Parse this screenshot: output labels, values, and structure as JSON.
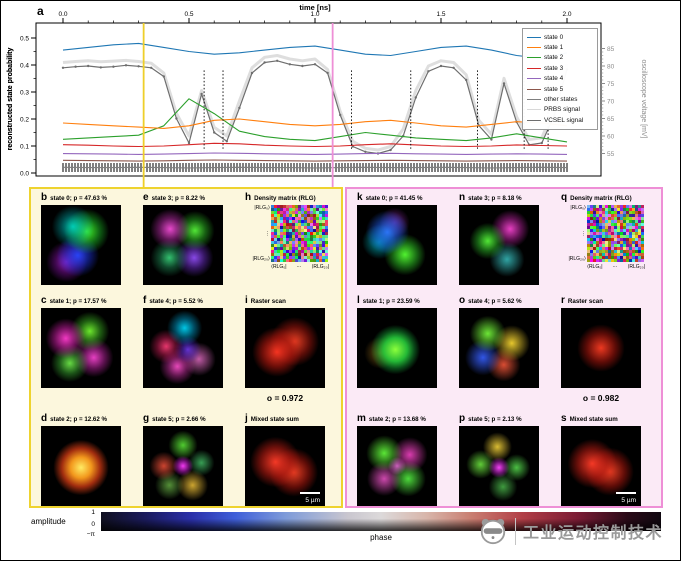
{
  "panel_a": {
    "letter": "a",
    "xlabel": "time [ns]",
    "ylabel_left": "reconstructed state probability",
    "ylabel_right": "oscilloscope voltage [mV]"
  },
  "chart_data": {
    "type": "line",
    "xlabel": "time [ns]",
    "ylabel_left": "reconstructed state probability",
    "ylabel_right": "oscilloscope voltage [mV]",
    "xlim": [
      0.0,
      2.0
    ],
    "ylim_left": [
      0.0,
      0.5
    ],
    "ylim_right": [
      49,
      88
    ],
    "x_ticks": [
      "0.0",
      "0.5",
      "1.0",
      "1.5",
      "2.0"
    ],
    "y_ticks_left": [
      "0.0",
      "0.1",
      "0.2",
      "0.3",
      "0.4",
      "0.5"
    ],
    "y_ticks_right": [
      "55",
      "60",
      "65",
      "70",
      "75",
      "80",
      "85"
    ],
    "legend_position": "upper right",
    "series": [
      {
        "name": "state 0",
        "color": "#1f77b4",
        "axis": "left",
        "x0": 0,
        "dx": 0.1,
        "y": [
          0.455,
          0.465,
          0.475,
          0.48,
          0.465,
          0.45,
          0.44,
          0.445,
          0.455,
          0.465,
          0.47,
          0.455,
          0.44,
          0.435,
          0.45,
          0.465,
          0.47,
          0.455,
          0.435,
          0.425,
          0.445
        ]
      },
      {
        "name": "state 1",
        "color": "#ff7f0e",
        "axis": "left",
        "x0": 0,
        "dx": 0.1,
        "y": [
          0.185,
          0.18,
          0.175,
          0.17,
          0.165,
          0.175,
          0.195,
          0.2,
          0.19,
          0.18,
          0.175,
          0.18,
          0.19,
          0.195,
          0.185,
          0.175,
          0.17,
          0.18,
          0.19,
          0.185,
          0.175
        ]
      },
      {
        "name": "state 2",
        "color": "#2ca02c",
        "axis": "left",
        "x0": 0,
        "dx": 0.1,
        "y": [
          0.125,
          0.13,
          0.135,
          0.14,
          0.175,
          0.275,
          0.22,
          0.155,
          0.135,
          0.125,
          0.12,
          0.135,
          0.15,
          0.14,
          0.13,
          0.125,
          0.12,
          0.13,
          0.145,
          0.13,
          0.115
        ]
      },
      {
        "name": "state 3",
        "color": "#d62728",
        "axis": "left",
        "x0": 0,
        "dx": 0.1,
        "y": [
          0.105,
          0.103,
          0.1,
          0.098,
          0.1,
          0.105,
          0.11,
          0.108,
          0.103,
          0.1,
          0.098,
          0.1,
          0.105,
          0.108,
          0.104,
          0.1,
          0.098,
          0.1,
          0.104,
          0.102,
          0.1
        ]
      },
      {
        "name": "state 4",
        "color": "#9467bd",
        "axis": "left",
        "x0": 0,
        "dx": 0.1,
        "y": [
          0.072,
          0.071,
          0.07,
          0.069,
          0.07,
          0.072,
          0.074,
          0.073,
          0.071,
          0.07,
          0.069,
          0.07,
          0.072,
          0.073,
          0.071,
          0.07,
          0.069,
          0.07,
          0.071,
          0.07,
          0.069
        ]
      },
      {
        "name": "state 5",
        "color": "#8c564b",
        "axis": "left",
        "x0": 0,
        "dx": 0.1,
        "y": [
          0.047,
          0.046,
          0.045,
          0.044,
          0.045,
          0.047,
          0.048,
          0.047,
          0.046,
          0.045,
          0.044,
          0.045,
          0.046,
          0.047,
          0.046,
          0.045,
          0.044,
          0.045,
          0.046,
          0.045,
          0.044
        ]
      },
      {
        "name": "other states",
        "color": "#7f7f7f",
        "axis": "left",
        "x0": 0,
        "dx": 0.1,
        "y": [
          0.021,
          0.02,
          0.02,
          0.021,
          0.02,
          0.019,
          0.02,
          0.021,
          0.02,
          0.02,
          0.019,
          0.02,
          0.021,
          0.02,
          0.02,
          0.021,
          0.02,
          0.019,
          0.02,
          0.021,
          0.02
        ]
      },
      {
        "name": "PRBS signal",
        "color": "#d8d8d8",
        "axis": "right",
        "x0": 0,
        "dx": 0.05,
        "y": [
          81.0,
          81.3,
          81.5,
          81.2,
          81.4,
          81.6,
          81.3,
          80.8,
          78.0,
          66.5,
          60.0,
          73.0,
          62.5,
          60.0,
          70.0,
          79.5,
          82.5,
          83.0,
          82.0,
          81.5,
          82.0,
          79.0,
          67.0,
          58.5,
          56.5,
          56.0,
          57.0,
          62.0,
          73.0,
          80.0,
          81.5,
          81.0,
          77.5,
          64.5,
          60.5,
          76.5,
          65.5,
          59.0,
          59.5,
          68.0,
          80.5
        ]
      },
      {
        "name": "VCSEL signal",
        "color": "#6e6e6e",
        "axis": "right",
        "x0": 0,
        "dx": 0.05,
        "markers": true,
        "y": [
          79.5,
          79.8,
          80.0,
          79.6,
          79.8,
          80.2,
          79.9,
          79.5,
          77.0,
          65.0,
          58.0,
          72.0,
          61.0,
          58.5,
          68.0,
          78.0,
          81.0,
          81.5,
          80.5,
          80.0,
          80.5,
          78.0,
          66.0,
          57.0,
          55.5,
          55.0,
          56.0,
          60.0,
          71.0,
          78.5,
          80.0,
          79.5,
          76.0,
          63.0,
          59.0,
          75.0,
          64.0,
          57.5,
          58.0,
          66.0,
          79.0
        ]
      }
    ],
    "annotations": {
      "yellow_line_x": 0.32,
      "pink_line_x": 1.07,
      "dotted_lines_x": [
        0.56,
        0.635,
        1.145,
        1.38,
        1.645,
        1.83,
        1.925
      ]
    }
  },
  "yellow_block": {
    "panels": [
      {
        "letter": "b",
        "title": "state 0; p = 47.63 %"
      },
      {
        "letter": "c",
        "title": "state 1; p = 17.57 %"
      },
      {
        "letter": "d",
        "title": "state 2; p = 12.62 %"
      },
      {
        "letter": "e",
        "title": "state 3; p = 8.22 %"
      },
      {
        "letter": "f",
        "title": "state 4; p = 5.52 %"
      },
      {
        "letter": "g",
        "title": "state 5; p = 2.66 %"
      },
      {
        "letter": "h",
        "title": "Density matrix (RLG)"
      },
      {
        "letter": "i",
        "title": "Raster scan"
      },
      {
        "letter": "j",
        "title": "Mixed state sum"
      }
    ],
    "overlap": "o = 0.972",
    "scalebar": "5 µm"
  },
  "pink_block": {
    "panels": [
      {
        "letter": "k",
        "title": "state 0; p = 41.45 %"
      },
      {
        "letter": "l",
        "title": "state 1; p = 23.59 %"
      },
      {
        "letter": "m",
        "title": "state 2; p = 13.68 %"
      },
      {
        "letter": "n",
        "title": "state 3; p = 8.18 %"
      },
      {
        "letter": "o",
        "title": "state 4; p = 5.62 %"
      },
      {
        "letter": "p",
        "title": "state 5; p = 2.13 %"
      },
      {
        "letter": "q",
        "title": "Density matrix (RLG)"
      },
      {
        "letter": "r",
        "title": "Raster scan"
      },
      {
        "letter": "s",
        "title": "Mixed state sum"
      }
    ],
    "overlap": "o = 0.982",
    "scalebar": "5 µm"
  },
  "density_matrix": {
    "ket_top": "|RLG₀⟩",
    "ket_bottom": "|RLG₂₀⟩",
    "bra_left": "⟨RLG₀|",
    "bra_right": "⟨RLG₂₀|",
    "vdots": "⋮",
    "cdots": "⋯"
  },
  "colorbar": {
    "amplitude_label": "amplitude",
    "tick_top": "1",
    "tick_bottom": "0",
    "phase_start": "−π",
    "phase_label": "phase"
  },
  "watermark": {
    "text": "工业运动控制技术"
  }
}
